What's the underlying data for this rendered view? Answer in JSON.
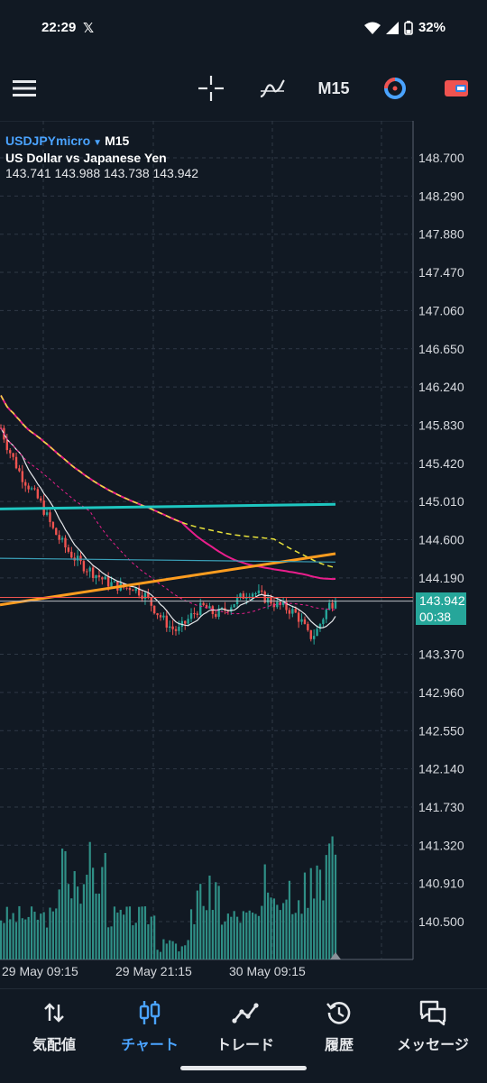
{
  "status_bar": {
    "time": "22:29",
    "x_icon": "𝕏",
    "battery": "32%"
  },
  "toolbar": {
    "timeframe": "M15"
  },
  "chart": {
    "symbol": "USDJPYmicro",
    "timeframe": "M15",
    "description": "US Dollar vs Japanese Yen",
    "ohlc": "143.741 143.988 143.738 143.942",
    "current_price": "143.942",
    "countdown": "00:38",
    "colors": {
      "up": "#26a69a",
      "down": "#ef5350",
      "ma_pink": "#e91e8c",
      "ma_teal": "#1ec6c0",
      "ma_orange": "#ff9d1f",
      "ma_yellow": "#e8e23a",
      "ma_white": "#e6e8eb"
    }
  },
  "chart_data": {
    "type": "candlestick",
    "y_axis_ticks": [
      "148.700",
      "148.290",
      "147.880",
      "147.470",
      "147.060",
      "146.650",
      "146.240",
      "145.830",
      "145.420",
      "145.010",
      "144.600",
      "144.190",
      "143.370",
      "142.960",
      "142.550",
      "142.140",
      "141.730",
      "141.320",
      "140.910",
      "140.500"
    ],
    "x_axis_labels": [
      "29 May 09:15",
      "29 May 21:15",
      "30 May 09:15"
    ],
    "ylim": [
      140.1,
      148.9
    ],
    "last_price": 143.942,
    "price_path": [
      145.8,
      145.6,
      145.45,
      145.3,
      145.2,
      145.1,
      145.0,
      144.85,
      144.7,
      144.6,
      144.5,
      144.42,
      144.35,
      144.3,
      144.25,
      144.2,
      144.15,
      144.12,
      144.1,
      144.08,
      144.1,
      144.05,
      144.0,
      143.9,
      143.8,
      143.72,
      143.65,
      143.62,
      143.7,
      143.78,
      143.85,
      143.88,
      143.82,
      143.8,
      143.84,
      143.9,
      143.95,
      144.0,
      144.05,
      144.02,
      143.98,
      143.95,
      143.9,
      143.88,
      143.85,
      143.8,
      143.7,
      143.55,
      143.6,
      143.75,
      143.9,
      143.94
    ]
  },
  "nav": {
    "items": [
      {
        "label": "気配値",
        "icon": "quotes-icon"
      },
      {
        "label": "チャート",
        "icon": "chart-icon"
      },
      {
        "label": "トレード",
        "icon": "trade-icon"
      },
      {
        "label": "履歴",
        "icon": "history-icon"
      },
      {
        "label": "メッセージ",
        "icon": "messages-icon"
      }
    ]
  }
}
